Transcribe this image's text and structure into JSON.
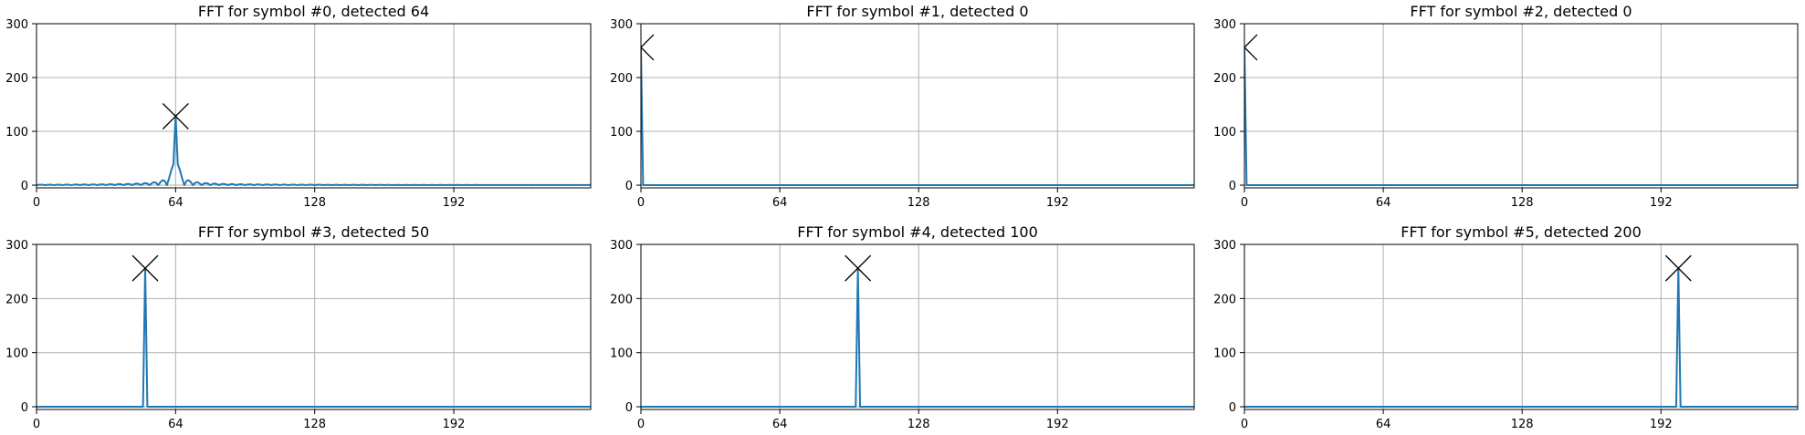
{
  "colors": {
    "line": "#1f77b4",
    "grid": "#b0b0b0",
    "marker": "#000000"
  },
  "chart_data": [
    {
      "type": "line",
      "title": "FFT for symbol #0, detected 64",
      "xlim": [
        0,
        255
      ],
      "ylim": [
        -5,
        300
      ],
      "xticks": [
        0,
        64,
        128,
        192
      ],
      "yticks": [
        0,
        100,
        200,
        300
      ],
      "grid": true,
      "series": [
        {
          "shape": "sinc",
          "peak_x": 64,
          "peak_y": 130
        }
      ],
      "marker": {
        "x": 64,
        "y": 128,
        "symbol": "x"
      }
    },
    {
      "type": "line",
      "title": "FFT for symbol #1, detected 0",
      "xlim": [
        0,
        255
      ],
      "ylim": [
        -5,
        300
      ],
      "xticks": [
        0,
        64,
        128,
        192
      ],
      "yticks": [
        0,
        100,
        200,
        300
      ],
      "grid": true,
      "series": [
        {
          "shape": "spike",
          "peak_x": 0,
          "peak_y": 256
        }
      ],
      "marker": {
        "x": 0,
        "y": 256,
        "symbol": "x"
      }
    },
    {
      "type": "line",
      "title": "FFT for symbol #2, detected 0",
      "xlim": [
        0,
        255
      ],
      "ylim": [
        -5,
        300
      ],
      "xticks": [
        0,
        64,
        128,
        192
      ],
      "yticks": [
        0,
        100,
        200,
        300
      ],
      "grid": true,
      "series": [
        {
          "shape": "spike",
          "peak_x": 0,
          "peak_y": 256
        }
      ],
      "marker": {
        "x": 0,
        "y": 256,
        "symbol": "x"
      }
    },
    {
      "type": "line",
      "title": "FFT for symbol #3, detected 50",
      "xlim": [
        0,
        255
      ],
      "ylim": [
        -5,
        300
      ],
      "xticks": [
        0,
        64,
        128,
        192
      ],
      "yticks": [
        0,
        100,
        200,
        300
      ],
      "grid": true,
      "series": [
        {
          "shape": "spike",
          "peak_x": 50,
          "peak_y": 256
        }
      ],
      "marker": {
        "x": 50,
        "y": 256,
        "symbol": "x"
      }
    },
    {
      "type": "line",
      "title": "FFT for symbol #4, detected 100",
      "xlim": [
        0,
        255
      ],
      "ylim": [
        -5,
        300
      ],
      "xticks": [
        0,
        64,
        128,
        192
      ],
      "yticks": [
        0,
        100,
        200,
        300
      ],
      "grid": true,
      "series": [
        {
          "shape": "spike",
          "peak_x": 100,
          "peak_y": 256
        }
      ],
      "marker": {
        "x": 100,
        "y": 256,
        "symbol": "x"
      }
    },
    {
      "type": "line",
      "title": "FFT for symbol #5, detected 200",
      "xlim": [
        0,
        255
      ],
      "ylim": [
        -5,
        300
      ],
      "xticks": [
        0,
        64,
        128,
        192
      ],
      "yticks": [
        0,
        100,
        200,
        300
      ],
      "grid": true,
      "series": [
        {
          "shape": "spike",
          "peak_x": 200,
          "peak_y": 256
        }
      ],
      "marker": {
        "x": 200,
        "y": 256,
        "symbol": "x"
      }
    }
  ]
}
